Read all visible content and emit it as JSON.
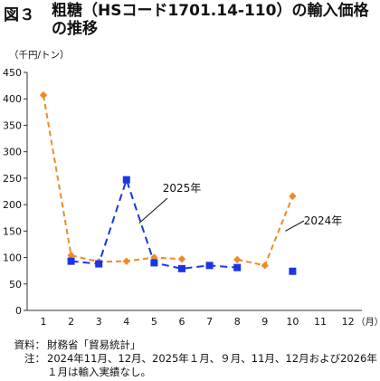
{
  "figure": {
    "label": "図３",
    "title": "粗糖（HSコード1701.14-110）の輸入価格の推移"
  },
  "chart_data": {
    "type": "line",
    "ylabel": "（千円/トン）",
    "xlabel": "（月）",
    "ylim": [
      0,
      450
    ],
    "yticks": [
      "0",
      "50",
      "100",
      "150",
      "200",
      "250",
      "300",
      "350",
      "400",
      "450"
    ],
    "categories": [
      "1",
      "2",
      "3",
      "4",
      "5",
      "6",
      "7",
      "8",
      "9",
      "10",
      "11",
      "12"
    ],
    "grid": false,
    "series": [
      {
        "name": "2024年",
        "color": "#f08a24",
        "marker": "diamond",
        "dash": "6,4",
        "values": [
          407,
          104,
          92,
          93,
          100,
          97,
          null,
          96,
          85,
          216,
          null,
          null
        ]
      },
      {
        "name": "2025年",
        "color": "#1a35e6",
        "marker": "square",
        "dash": "8,5",
        "values": [
          null,
          93,
          88,
          247,
          90,
          79,
          85,
          81,
          null,
          74,
          null,
          null
        ]
      }
    ]
  },
  "notes": [
    {
      "key": "資料：",
      "text": "財務省「貿易統計」"
    },
    {
      "key": "注：",
      "text": "2024年11月、12月、2025年１月、９月、11月、12月および2026年１月は輸入実績なし。"
    }
  ]
}
